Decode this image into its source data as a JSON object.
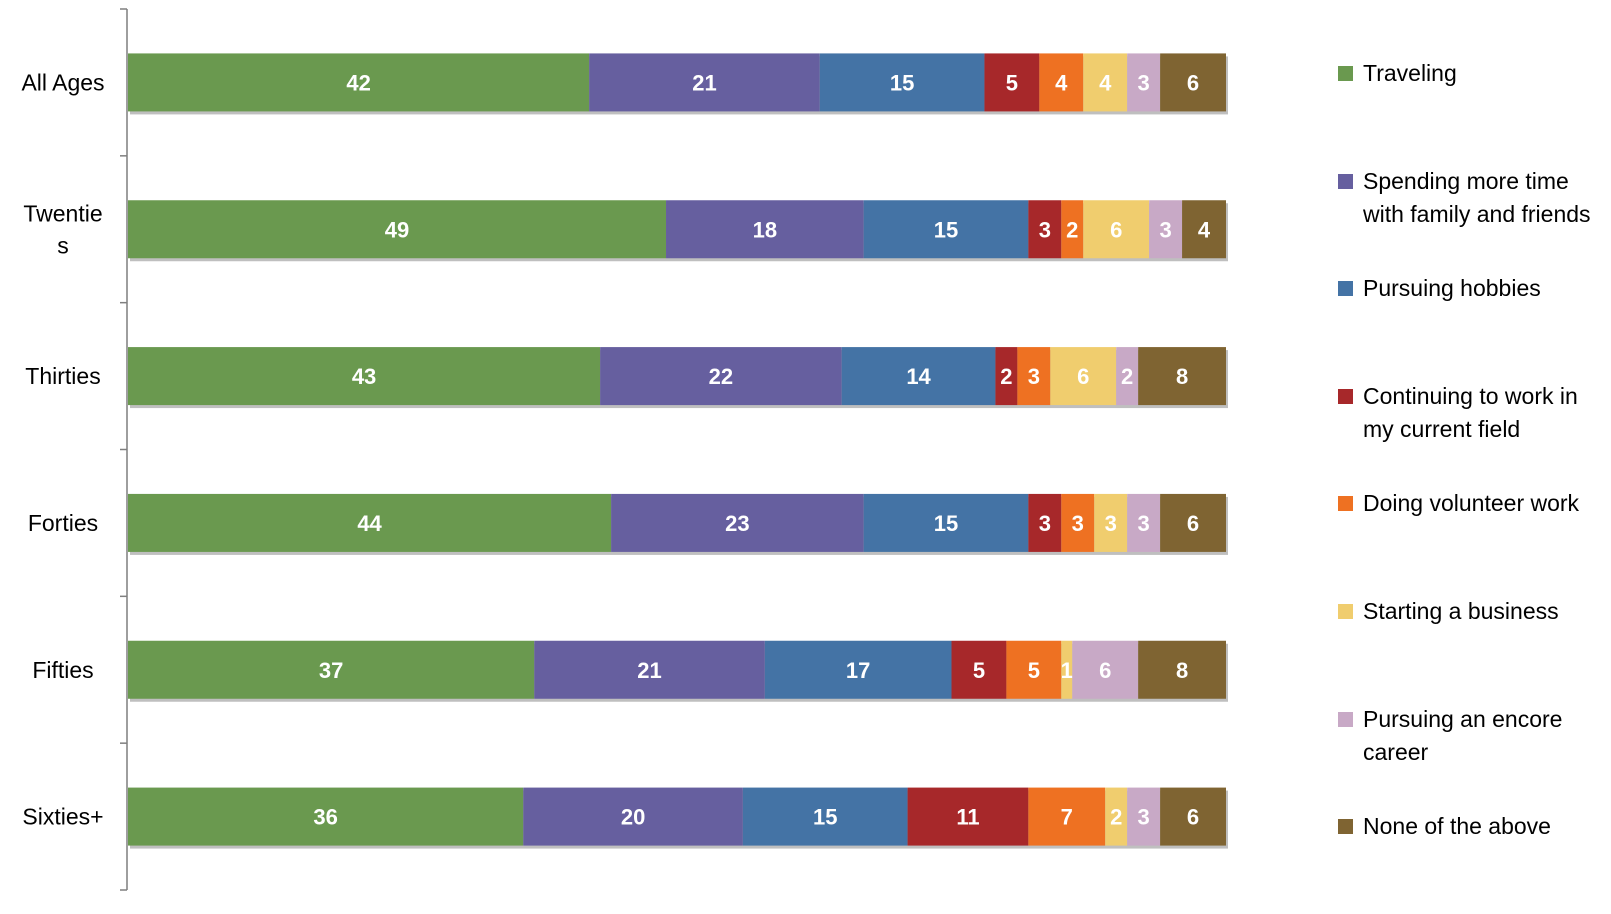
{
  "chart_data": {
    "type": "bar",
    "orientation": "horizontal",
    "stacked": true,
    "title": "",
    "xlabel": "",
    "ylabel": "",
    "xlim": [
      0,
      100
    ],
    "grid": false,
    "legend_position": "right",
    "categories": [
      "All Ages",
      "Twentie\ns",
      "Thirties",
      "Forties",
      "Fifties",
      "Sixties+"
    ],
    "series": [
      {
        "name": "Traveling",
        "color": "#6a994f",
        "values": [
          42,
          49,
          43,
          44,
          37,
          36
        ]
      },
      {
        "name": "Spending more time with family and friends",
        "color": "#665f9f",
        "values": [
          21,
          18,
          22,
          23,
          21,
          20
        ]
      },
      {
        "name": "Pursuing hobbies",
        "color": "#4473a5",
        "values": [
          15,
          15,
          14,
          15,
          17,
          15
        ]
      },
      {
        "name": "Continuing to work in my current field",
        "color": "#a7282a",
        "values": [
          5,
          3,
          2,
          3,
          5,
          11
        ]
      },
      {
        "name": "Doing volunteer work",
        "color": "#ee7122",
        "values": [
          4,
          2,
          3,
          3,
          5,
          7
        ]
      },
      {
        "name": "Starting a business",
        "color": "#f0cd6e",
        "values": [
          4,
          6,
          6,
          3,
          1,
          2
        ]
      },
      {
        "name": "Pursuing an encore career",
        "color": "#c8a9c6",
        "values": [
          3,
          3,
          2,
          3,
          6,
          3
        ]
      },
      {
        "name": "None of the above",
        "color": "#7f6432",
        "values": [
          6,
          4,
          8,
          6,
          8,
          6
        ]
      }
    ]
  }
}
